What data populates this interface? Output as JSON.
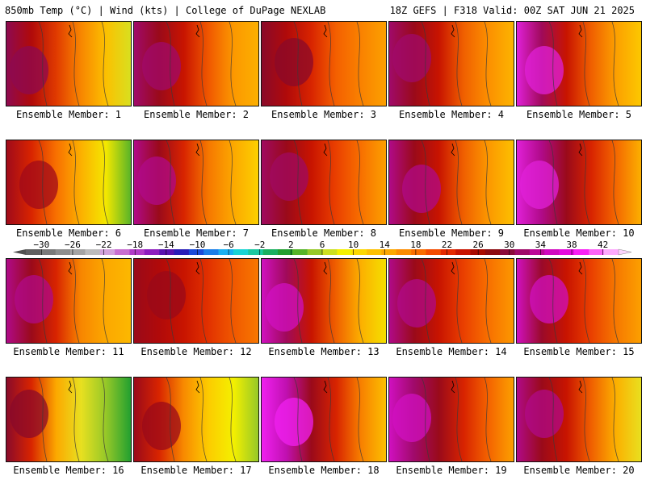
{
  "header": {
    "left": "850mb Temp (°C) | Wind (kts) | College of DuPage NEXLAB",
    "right": "18Z GEFS | F318 Valid: 00Z SAT JUN 21 2025"
  },
  "colorbar": {
    "ticks": [
      "-30",
      "-26",
      "-22",
      "-18",
      "-14",
      "-10",
      "-6",
      "-2",
      "2",
      "6",
      "10",
      "14",
      "18",
      "22",
      "26",
      "30",
      "34",
      "38",
      "42"
    ],
    "range_c": [
      -32,
      44
    ],
    "palette": [
      "#606060",
      "#7a7a7a",
      "#8e8e8e",
      "#a4a4a4",
      "#bcbcbc",
      "#d3a2dc",
      "#c86ed0",
      "#b03cc8",
      "#8d1dbf",
      "#5a13b0",
      "#2a1eb8",
      "#1a4ad8",
      "#1a7ee8",
      "#1ab0f0",
      "#1ad4d4",
      "#1ac8a0",
      "#1ab060",
      "#22a030",
      "#56b428",
      "#96c828",
      "#cce020",
      "#f4f000",
      "#fcd800",
      "#fcc000",
      "#fca800",
      "#fc8c00",
      "#fa6e00",
      "#f44c00",
      "#e42a00",
      "#c81400",
      "#a80a00",
      "#8c0a10",
      "#8a0a3a",
      "#a00a6a",
      "#bc0a98",
      "#d00ac0",
      "#e60ae0",
      "#f820f4",
      "#fc64f8",
      "#fcaafc"
    ]
  },
  "panels": [
    {
      "label": "Ensemble Member: 1",
      "member": 1,
      "colors": [
        "#8e0a50",
        "#b00a0a",
        "#e03a00",
        "#f88600",
        "#fcc000",
        "#d8e020"
      ]
    },
    {
      "label": "Ensemble Member: 2",
      "member": 2,
      "colors": [
        "#a00a6a",
        "#9a0a1a",
        "#c81400",
        "#f05800",
        "#fc9800",
        "#fcb000"
      ]
    },
    {
      "label": "Ensemble Member: 3",
      "member": 3,
      "colors": [
        "#8a0a2a",
        "#b00a0a",
        "#d82400",
        "#f46000",
        "#fa8200",
        "#fca000"
      ]
    },
    {
      "label": "Ensemble Member: 4",
      "member": 4,
      "colors": [
        "#a00a6a",
        "#9a0a1a",
        "#c81400",
        "#f06000",
        "#fc9000",
        "#fcb400"
      ]
    },
    {
      "label": "Ensemble Member: 5",
      "member": 5,
      "colors": [
        "#e020d8",
        "#a00a5a",
        "#c81400",
        "#f06000",
        "#fca000",
        "#fcc800"
      ]
    },
    {
      "label": "Ensemble Member: 6",
      "member": 6,
      "colors": [
        "#a00a1a",
        "#d82400",
        "#f87000",
        "#fcb000",
        "#f4e800",
        "#58b428"
      ]
    },
    {
      "label": "Ensemble Member: 7",
      "member": 7,
      "colors": [
        "#b00a88",
        "#9a0a1a",
        "#d82400",
        "#f67800",
        "#fca800",
        "#fcd000"
      ]
    },
    {
      "label": "Ensemble Member: 8",
      "member": 8,
      "colors": [
        "#a00a60",
        "#9a0a1a",
        "#c81400",
        "#ea4000",
        "#f87000",
        "#fca000"
      ]
    },
    {
      "label": "Ensemble Member: 9",
      "member": 9,
      "colors": [
        "#b00a88",
        "#9a0a1a",
        "#c81400",
        "#f06000",
        "#fc9800",
        "#fcc000"
      ]
    },
    {
      "label": "Ensemble Member: 10",
      "member": 10,
      "colors": [
        "#e020d8",
        "#b00a88",
        "#9a0a1a",
        "#d82400",
        "#f46800",
        "#fcb000"
      ]
    },
    {
      "label": "Ensemble Member: 11",
      "member": 11,
      "colors": [
        "#b00a88",
        "#9a0a1a",
        "#d82400",
        "#f88600",
        "#fca800",
        "#fcb800"
      ]
    },
    {
      "label": "Ensemble Member: 12",
      "member": 12,
      "colors": [
        "#9a0a1a",
        "#b00a0a",
        "#c81400",
        "#e23200",
        "#f05800",
        "#f87800"
      ]
    },
    {
      "label": "Ensemble Member: 13",
      "member": 13,
      "colors": [
        "#d010c0",
        "#a00a5a",
        "#c81400",
        "#f06000",
        "#fcb000",
        "#f4e000"
      ]
    },
    {
      "label": "Ensemble Member: 14",
      "member": 14,
      "colors": [
        "#b00a88",
        "#9a0a1a",
        "#c81400",
        "#ea4000",
        "#f87000",
        "#fc9800"
      ]
    },
    {
      "label": "Ensemble Member: 15",
      "member": 15,
      "colors": [
        "#d010c0",
        "#9a0a2a",
        "#c81400",
        "#ea4000",
        "#f67800",
        "#fca000"
      ]
    },
    {
      "label": "Ensemble Member: 16",
      "member": 16,
      "colors": [
        "#8a0a2a",
        "#d82400",
        "#fca800",
        "#e8e020",
        "#96c828",
        "#22a030"
      ]
    },
    {
      "label": "Ensemble Member: 17",
      "member": 17,
      "colors": [
        "#9a0a1a",
        "#d82400",
        "#f88a00",
        "#fccc00",
        "#f4f000",
        "#96c828"
      ]
    },
    {
      "label": "Ensemble Member: 18",
      "member": 18,
      "colors": [
        "#f020f0",
        "#c010b0",
        "#9a0a1a",
        "#d82400",
        "#f88000",
        "#fcc000"
      ]
    },
    {
      "label": "Ensemble Member: 19",
      "member": 19,
      "colors": [
        "#d010c0",
        "#a00a6a",
        "#9a0a1a",
        "#d82400",
        "#f46400",
        "#fca000"
      ]
    },
    {
      "label": "Ensemble Member: 20",
      "member": 20,
      "colors": [
        "#b00a88",
        "#9a0a1a",
        "#c81400",
        "#f06000",
        "#fcb000",
        "#e8e020"
      ]
    }
  ]
}
